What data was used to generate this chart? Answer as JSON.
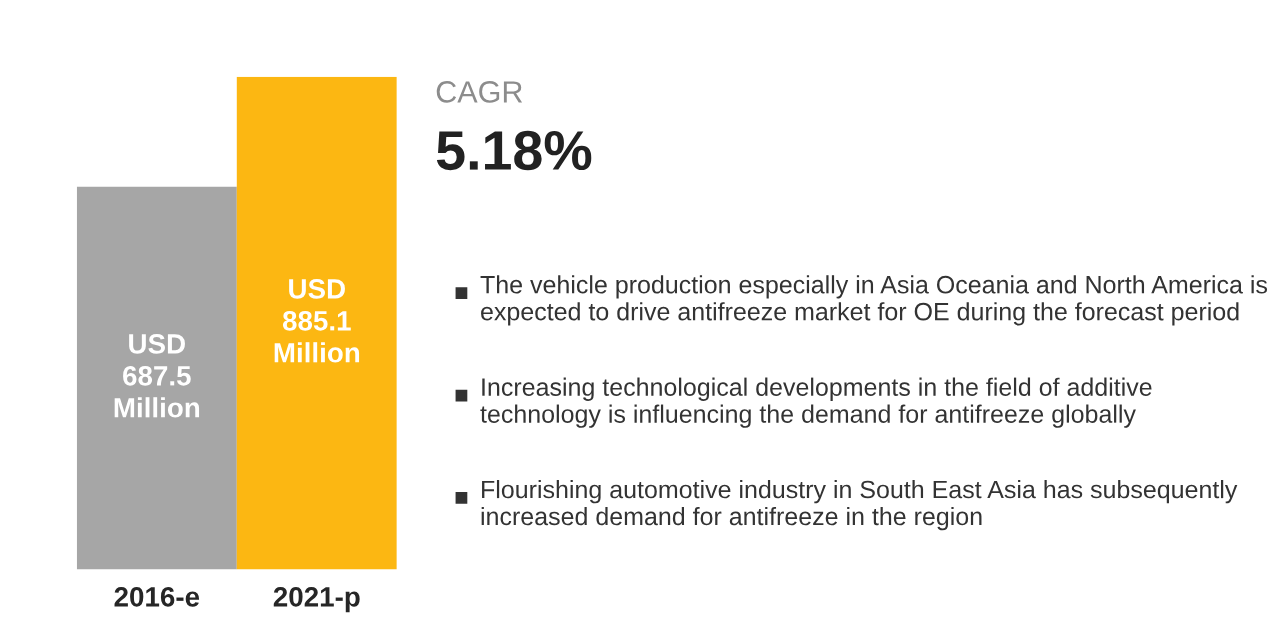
{
  "chart_data": {
    "type": "bar",
    "categories": [
      "2016-e",
      "2021-p"
    ],
    "values": [
      687.5,
      885.1
    ],
    "colors": [
      "#a6a6a6",
      "#fcb712"
    ],
    "value_labels": [
      "USD\n687.5\nMillion",
      "USD\n885.1\nMillion"
    ],
    "annotations": [
      "CAGR",
      "5.18%",
      "The vehicle production especially in Asia Oceania and North America is expected to drive antifreeze market for OE during the forecast period",
      "Increasing technological developments in the field of additive technology is influencing the demand for antifreeze globally",
      "Flourishing automotive industry in South East Asia has subsequently increased demand for antifreeze in the region"
    ]
  }
}
